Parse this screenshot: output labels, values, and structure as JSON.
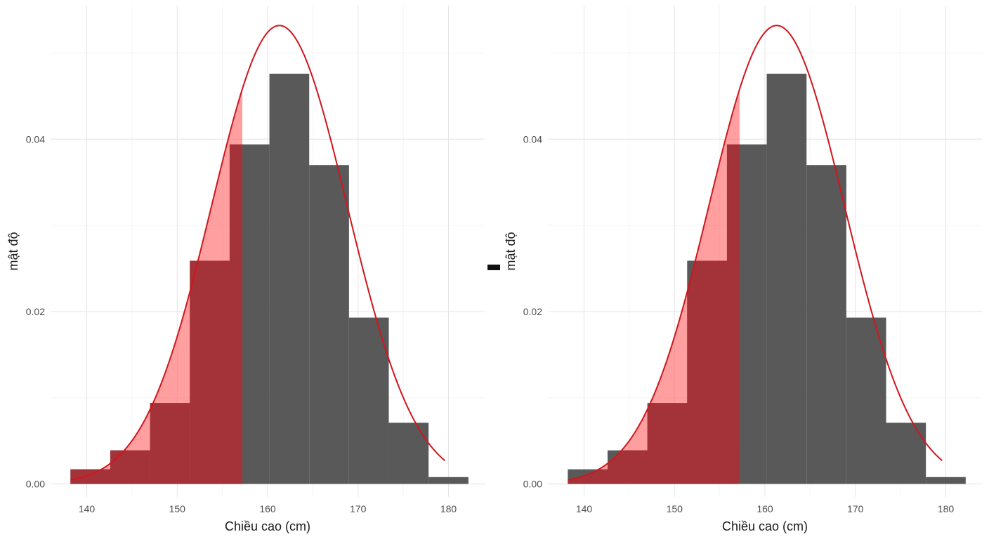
{
  "chart_data": [
    {
      "type": "histogram",
      "title": "",
      "xlabel": "Chiều cao (cm)",
      "ylabel": "mật độ",
      "xlim": [
        136,
        184
      ],
      "ylim": [
        -0.0015,
        0.0555
      ],
      "x_ticks": [
        "140",
        "150",
        "160",
        "170",
        "180"
      ],
      "y_ticks": [
        "0.00",
        "0.02",
        "0.04"
      ],
      "bins": [
        {
          "x0": 138.2,
          "x1": 142.6,
          "density": 0.0017
        },
        {
          "x0": 142.6,
          "x1": 147.0,
          "density": 0.0039
        },
        {
          "x0": 147.0,
          "x1": 151.4,
          "density": 0.0094
        },
        {
          "x0": 151.4,
          "x1": 155.8,
          "density": 0.0259
        },
        {
          "x0": 155.8,
          "x1": 160.2,
          "density": 0.0394
        },
        {
          "x0": 160.2,
          "x1": 164.6,
          "density": 0.0476
        },
        {
          "x0": 164.6,
          "x1": 169.0,
          "density": 0.037
        },
        {
          "x0": 169.0,
          "x1": 173.4,
          "density": 0.0193
        },
        {
          "x0": 173.4,
          "x1": 177.8,
          "density": 0.0071
        },
        {
          "x0": 177.8,
          "x1": 182.2,
          "density": 0.0008
        }
      ],
      "normal_curve": {
        "mean": 161.3,
        "sd": 7.5,
        "x_from": 138.2,
        "x_to": 179.6
      },
      "shade_below": 157.2,
      "shade_style": "bars",
      "grid": true,
      "colors": {
        "bar": "#595959",
        "shaded_bar": "#a33338",
        "area": "#ff5f5f",
        "curve": "#d0161e"
      }
    },
    {
      "type": "histogram",
      "title": "",
      "xlabel": "Chiều cao (cm)",
      "ylabel": "mật độ",
      "xlim": [
        136,
        184
      ],
      "ylim": [
        -0.0015,
        0.0555
      ],
      "x_ticks": [
        "140",
        "150",
        "160",
        "170",
        "180"
      ],
      "y_ticks": [
        "0.00",
        "0.02",
        "0.04"
      ],
      "bins": [
        {
          "x0": 138.2,
          "x1": 142.6,
          "density": 0.0017
        },
        {
          "x0": 142.6,
          "x1": 147.0,
          "density": 0.0039
        },
        {
          "x0": 147.0,
          "x1": 151.4,
          "density": 0.0094
        },
        {
          "x0": 151.4,
          "x1": 155.8,
          "density": 0.0259
        },
        {
          "x0": 155.8,
          "x1": 160.2,
          "density": 0.0394
        },
        {
          "x0": 160.2,
          "x1": 164.6,
          "density": 0.0476
        },
        {
          "x0": 164.6,
          "x1": 169.0,
          "density": 0.037
        },
        {
          "x0": 169.0,
          "x1": 173.4,
          "density": 0.0193
        },
        {
          "x0": 173.4,
          "x1": 177.8,
          "density": 0.0071
        },
        {
          "x0": 177.8,
          "x1": 182.2,
          "density": 0.0008
        }
      ],
      "normal_curve": {
        "mean": 161.3,
        "sd": 7.5,
        "x_from": 138.2,
        "x_to": 179.6
      },
      "shade_below": 157.2,
      "shade_style": "area-under-bars",
      "grid": true,
      "colors": {
        "bar": "#595959",
        "shaded_bar": "#a33338",
        "area": "#ff5f5f",
        "curve": "#d0161e"
      }
    }
  ]
}
